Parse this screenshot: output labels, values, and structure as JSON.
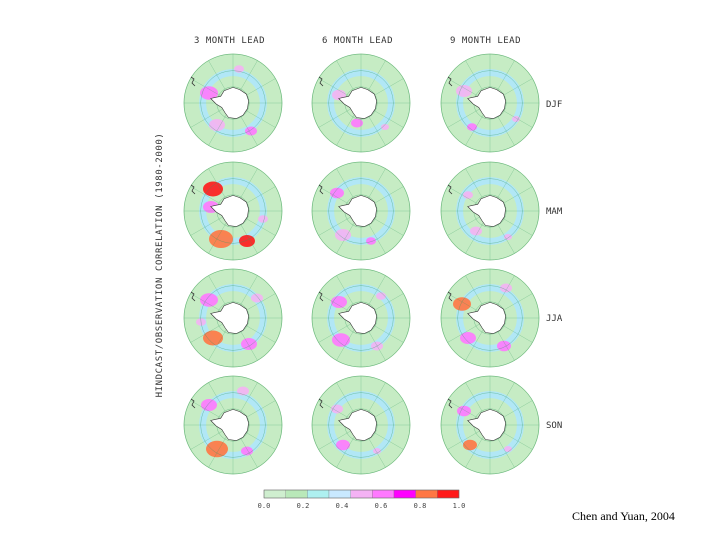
{
  "figure": {
    "column_titles": [
      "3 MONTH LEAD",
      "6 MONTH LEAD",
      "9 MONTH LEAD"
    ],
    "row_labels": [
      "DJF",
      "MAM",
      "JJA",
      "SON"
    ],
    "ylabel": "HINDCAST/OBSERVATION CORRELATION (1980-2000)",
    "colorbar": {
      "ticks": [
        "0.0",
        "0.2",
        "0.4",
        "0.6",
        "0.8",
        "1.0"
      ],
      "colors": [
        "#cfeecf",
        "#b9e8b9",
        "#aef0f0",
        "#c9e9ff",
        "#f4b2f4",
        "#ff79ff",
        "#ff00ff",
        "#ff7744",
        "#ff1a1a"
      ]
    },
    "map_colors": {
      "ocean": "#c6ecc4",
      "ice_edge": "#ade6ff",
      "continent": "#ffffff",
      "grid": "#2f9a5c"
    },
    "credit": "Chen and Yuan, 2004"
  }
}
